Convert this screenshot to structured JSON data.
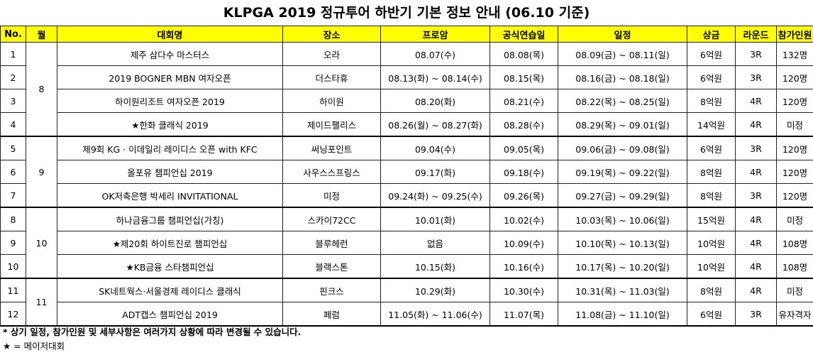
{
  "title": "KLPGA 2019 정규투어 하반기 기본 정보 안내 (06.10 기준)",
  "columns": [
    "No.",
    "월",
    "대회명",
    "장소",
    "프로암",
    "공식연습일",
    "일정",
    "상금",
    "라운드",
    "참가인원"
  ],
  "groups": [
    {
      "month": "8",
      "rows": [
        {
          "no": "1",
          "name": "제주 삼다수 마스터스",
          "venue": "오라",
          "proam": "08.07(수)",
          "practice": "08.08(목)",
          "schedule": "08.09(금) ~ 08.11(일)",
          "prize": "6억원",
          "rounds": "3R",
          "players": "132명"
        },
        {
          "no": "2",
          "name": "2019 BOGNER MBN 여자오픈",
          "venue": "더스타휴",
          "proam": "08.13(화) ~ 08.14(수)",
          "practice": "08.15(목)",
          "schedule": "08.16(금) ~ 08.18(일)",
          "prize": "6억원",
          "rounds": "3R",
          "players": "120명"
        },
        {
          "no": "3",
          "name": "하이원리조트 여자오픈 2019",
          "venue": "하이원",
          "proam": "08.20(화)",
          "practice": "08.21(수)",
          "schedule": "08.22(목) ~ 08.25(일)",
          "prize": "8억원",
          "rounds": "4R",
          "players": "120명"
        },
        {
          "no": "4",
          "name": "★한화 클래식 2019",
          "venue": "제이드팰리스",
          "proam": "08.26(월) ~ 08.27(화)",
          "practice": "08.28(수)",
          "schedule": "08.29(목) ~ 09.01(일)",
          "prize": "14억원",
          "rounds": "4R",
          "players": "미정"
        }
      ]
    },
    {
      "month": "9",
      "rows": [
        {
          "no": "5",
          "name": "제9회 KG · 이데일리 레이디스 오픈 with KFC",
          "venue": "써닝포인트",
          "proam": "09.04(수)",
          "practice": "09.05(목)",
          "schedule": "09.06(금) ~ 09.08(일)",
          "prize": "6억원",
          "rounds": "3R",
          "players": "120명"
        },
        {
          "no": "6",
          "name": "올포유 챔피언십 2019",
          "venue": "사우스스프링스",
          "proam": "09.17(화)",
          "practice": "09.18(수)",
          "schedule": "09.19(목) ~ 09.22(일)",
          "prize": "8억원",
          "rounds": "4R",
          "players": "120명"
        },
        {
          "no": "7",
          "name": "OK저축은행 박세리 INVITATIONAL",
          "venue": "미정",
          "proam": "09.24(화) ~ 09.25(수)",
          "practice": "09.26(목)",
          "schedule": "09.27(금) ~ 09.29(일)",
          "prize": "8억원",
          "rounds": "3R",
          "players": "120명"
        }
      ]
    },
    {
      "month": "10",
      "rows": [
        {
          "no": "8",
          "name": "하나금융그룹 챔피언십(가칭)",
          "venue": "스카이72CC",
          "proam": "10.01(화)",
          "practice": "10.02(수)",
          "schedule": "10.03(목) ~ 10.06(일)",
          "prize": "15억원",
          "rounds": "4R",
          "players": "미정"
        },
        {
          "no": "9",
          "name": "★제20회 하이트진로 챔피언십",
          "venue": "블루헤런",
          "proam": "없음",
          "practice": "10.09(수)",
          "schedule": "10.10(목) ~ 10.13(일)",
          "prize": "10억원",
          "rounds": "4R",
          "players": "108명"
        },
        {
          "no": "10",
          "name": "★KB금융 스타챔피언십",
          "venue": "블랙스톤",
          "proam": "10.15(화)",
          "practice": "10.16(수)",
          "schedule": "10.17(목) ~ 10.20(일)",
          "prize": "10억원",
          "rounds": "4R",
          "players": "108명"
        }
      ]
    },
    {
      "month": "11",
      "rows": [
        {
          "no": "11",
          "name": "SK네트웍스·서울경제 레이디스 클래식",
          "venue": "핀크스",
          "proam": "10.29(화)",
          "practice": "10.30(수)",
          "schedule": "10.31(목) ~ 11.03(일)",
          "prize": "8억원",
          "rounds": "4R",
          "players": "미정"
        },
        {
          "no": "12",
          "name": "ADT캡스 챔피언십 2019",
          "venue": "페럼",
          "proam": "11.05(화) ~ 11.06(수)",
          "practice": "11.07(목)",
          "schedule": "11.08(금) ~ 11.10(일)",
          "prize": "6억원",
          "rounds": "3R",
          "players": "유자격자"
        }
      ]
    }
  ],
  "notes": {
    "note1": "* 상기 일정, 참가인원 및 세부사항은 여러가지 상황에 따라 변경될 수 있습니다.",
    "note2": "★ = 메이저대회"
  }
}
